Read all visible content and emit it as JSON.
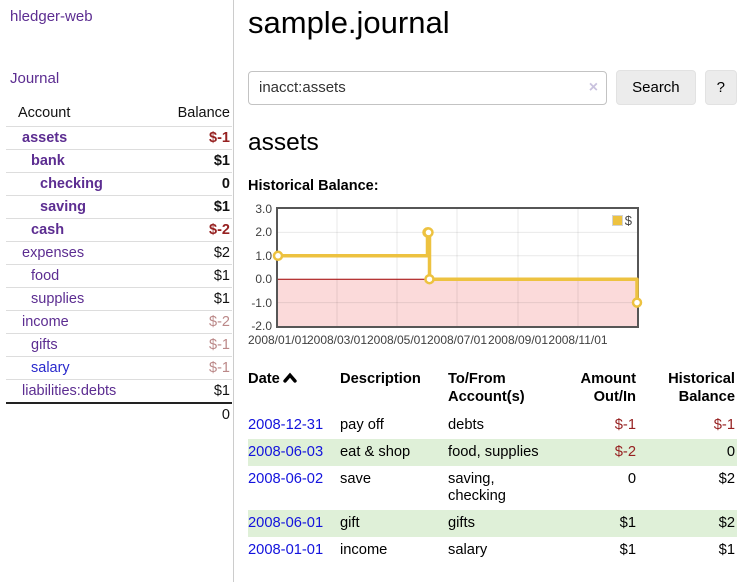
{
  "app": {
    "title": "hledger-web"
  },
  "sidebar": {
    "nav_label": "Journal",
    "table": {
      "headers": [
        "Account",
        "Balance"
      ],
      "rows": [
        {
          "name": "assets",
          "depth": 1,
          "bold": true,
          "balance": "$-1",
          "negStrong": true
        },
        {
          "name": "bank",
          "depth": 2,
          "bold": true,
          "balance": "$1"
        },
        {
          "name": "checking",
          "depth": 3,
          "bold": true,
          "balance": "0"
        },
        {
          "name": "saving",
          "depth": 3,
          "bold": true,
          "balance": "$1"
        },
        {
          "name": "cash",
          "depth": 2,
          "bold": true,
          "balance": "$-2",
          "negStrong": true
        },
        {
          "name": "expenses",
          "depth": 1,
          "balance": "$2"
        },
        {
          "name": "food",
          "depth": 2,
          "balance": "$1"
        },
        {
          "name": "supplies",
          "depth": 2,
          "balance": "$1"
        },
        {
          "name": "income",
          "depth": 1,
          "balance": "$-2",
          "negSoft": true
        },
        {
          "name": "gifts",
          "depth": 2,
          "balance": "$-1",
          "negSoft": true
        },
        {
          "name": "salary",
          "depth": 2,
          "blue": true,
          "balance": "$-1",
          "negSoft": true
        },
        {
          "name": "liabilities:debts",
          "depth": 1,
          "balance": "$1"
        }
      ],
      "total": "0"
    }
  },
  "main": {
    "title": "sample.journal",
    "search": {
      "value": "inacct:assets",
      "clear_icon": "×",
      "button_label": "Search",
      "help_label": "?"
    },
    "account_heading": "assets",
    "section_label": "Historical Balance:",
    "register": {
      "headers": {
        "date": "Date",
        "description": "Description",
        "accounts": "To/From Account(s)",
        "amount": "Amount Out/In",
        "balance": "Historical Balance"
      },
      "rows": [
        {
          "date": "2008-12-31",
          "description": "pay off",
          "accounts": "debts",
          "amount": "$-1",
          "amountNeg": true,
          "balance": "$-1",
          "balanceNeg": true
        },
        {
          "date": "2008-06-03",
          "description": "eat & shop",
          "accounts": "food, supplies",
          "amount": "$-2",
          "amountNeg": true,
          "balance": "0"
        },
        {
          "date": "2008-06-02",
          "description": "save",
          "accounts": "saving, checking",
          "amount": "0",
          "balance": "$2"
        },
        {
          "date": "2008-06-01",
          "description": "gift",
          "accounts": "gifts",
          "amount": "$1",
          "balance": "$2"
        },
        {
          "date": "2008-01-01",
          "description": "income",
          "accounts": "salary",
          "amount": "$1",
          "balance": "$1"
        }
      ]
    }
  },
  "chart_data": {
    "type": "line",
    "title": "Historical Balance of assets",
    "step": true,
    "series": [
      {
        "name": "$",
        "points": [
          [
            "2008-01-01",
            1
          ],
          [
            "2008-06-01",
            2
          ],
          [
            "2008-06-02",
            2
          ],
          [
            "2008-06-03",
            0
          ],
          [
            "2008-12-31",
            -1
          ]
        ]
      }
    ],
    "x_range": [
      "2008-01-01",
      "2008-12-31"
    ],
    "ylim": [
      -2,
      3
    ],
    "xticks": [
      {
        "date": "2008-01-01",
        "label": "2008/01/01"
      },
      {
        "date": "2008-03-01",
        "label": "2008/03/01"
      },
      {
        "date": "2008-05-01",
        "label": "2008/05/01"
      },
      {
        "date": "2008-07-01",
        "label": "2008/07/01"
      },
      {
        "date": "2008-09-01",
        "label": "2008/09/01"
      },
      {
        "date": "2008-11-01",
        "label": "2008/11/01"
      }
    ],
    "yticks": [
      {
        "v": 3,
        "label": "3.0"
      },
      {
        "v": 2,
        "label": "2.0"
      },
      {
        "v": 1,
        "label": "1.0"
      },
      {
        "v": 0,
        "label": "0.0"
      },
      {
        "v": -1,
        "label": "-1.0"
      },
      {
        "v": -2,
        "label": "-2.0"
      }
    ],
    "legend": {
      "label": "$",
      "position": "top-right",
      "swatch_color": "#edc240"
    },
    "line_color": "#edc240",
    "marker_fill": "#ffffff",
    "below_zero_fill": "#fbdada",
    "zero_line_color": "#a00000",
    "grid": true,
    "legend_visible": true
  }
}
